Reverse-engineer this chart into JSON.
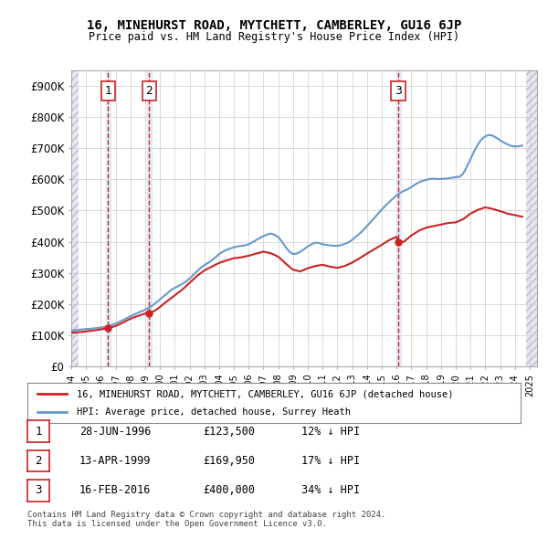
{
  "title": "16, MINEHURST ROAD, MYTCHETT, CAMBERLEY, GU16 6JP",
  "subtitle": "Price paid vs. HM Land Registry's House Price Index (HPI)",
  "xlabel": "",
  "ylabel": "",
  "ylim": [
    0,
    950000
  ],
  "xlim_start": 1994.0,
  "xlim_end": 2025.5,
  "yticks": [
    0,
    100000,
    200000,
    300000,
    400000,
    500000,
    600000,
    700000,
    800000,
    900000
  ],
  "ytick_labels": [
    "£0",
    "£100K",
    "£200K",
    "£300K",
    "£400K",
    "£500K",
    "£600K",
    "£700K",
    "£800K",
    "£900K"
  ],
  "sales": [
    {
      "date_num": 1996.49,
      "price": 123500,
      "label": "1"
    },
    {
      "date_num": 1999.28,
      "price": 169950,
      "label": "2"
    },
    {
      "date_num": 2016.12,
      "price": 400000,
      "label": "3"
    }
  ],
  "hpi_color": "#6699cc",
  "price_color": "#cc2222",
  "sale_marker_color": "#cc2222",
  "vline_color": "#cc2222",
  "background_hatch_color": "#e8e8f0",
  "grid_color": "#cccccc",
  "legend_entries": [
    "16, MINEHURST ROAD, MYTCHETT, CAMBERLEY, GU16 6JP (detached house)",
    "HPI: Average price, detached house, Surrey Heath"
  ],
  "table_rows": [
    [
      "1",
      "28-JUN-1996",
      "£123,500",
      "12% ↓ HPI"
    ],
    [
      "2",
      "13-APR-1999",
      "£169,950",
      "17% ↓ HPI"
    ],
    [
      "3",
      "16-FEB-2016",
      "£400,000",
      "34% ↓ HPI"
    ]
  ],
  "footer": "Contains HM Land Registry data © Crown copyright and database right 2024.\nThis data is licensed under the Open Government Licence v3.0.",
  "hpi_data_x": [
    1994.0,
    1994.25,
    1994.5,
    1994.75,
    1995.0,
    1995.25,
    1995.5,
    1995.75,
    1996.0,
    1996.25,
    1996.5,
    1996.75,
    1997.0,
    1997.25,
    1997.5,
    1997.75,
    1998.0,
    1998.25,
    1998.5,
    1998.75,
    1999.0,
    1999.25,
    1999.5,
    1999.75,
    2000.0,
    2000.25,
    2000.5,
    2000.75,
    2001.0,
    2001.25,
    2001.5,
    2001.75,
    2002.0,
    2002.25,
    2002.5,
    2002.75,
    2003.0,
    2003.25,
    2003.5,
    2003.75,
    2004.0,
    2004.25,
    2004.5,
    2004.75,
    2005.0,
    2005.25,
    2005.5,
    2005.75,
    2006.0,
    2006.25,
    2006.5,
    2006.75,
    2007.0,
    2007.25,
    2007.5,
    2007.75,
    2008.0,
    2008.25,
    2008.5,
    2008.75,
    2009.0,
    2009.25,
    2009.5,
    2009.75,
    2010.0,
    2010.25,
    2010.5,
    2010.75,
    2011.0,
    2011.25,
    2011.5,
    2011.75,
    2012.0,
    2012.25,
    2012.5,
    2012.75,
    2013.0,
    2013.25,
    2013.5,
    2013.75,
    2014.0,
    2014.25,
    2014.5,
    2014.75,
    2015.0,
    2015.25,
    2015.5,
    2015.75,
    2016.0,
    2016.25,
    2016.5,
    2016.75,
    2017.0,
    2017.25,
    2017.5,
    2017.75,
    2018.0,
    2018.25,
    2018.5,
    2018.75,
    2019.0,
    2019.25,
    2019.5,
    2019.75,
    2020.0,
    2020.25,
    2020.5,
    2020.75,
    2021.0,
    2021.25,
    2021.5,
    2021.75,
    2022.0,
    2022.25,
    2022.5,
    2022.75,
    2023.0,
    2023.25,
    2023.5,
    2023.75,
    2024.0,
    2024.25,
    2024.5
  ],
  "hpi_data_y": [
    115000,
    116000,
    117500,
    119000,
    120000,
    121000,
    122000,
    123500,
    125000,
    127000,
    130000,
    133000,
    138000,
    143000,
    149000,
    155000,
    161000,
    167000,
    172000,
    177000,
    182000,
    188000,
    196000,
    205000,
    215000,
    225000,
    235000,
    245000,
    252000,
    258000,
    265000,
    272000,
    282000,
    293000,
    305000,
    316000,
    325000,
    332000,
    340000,
    350000,
    360000,
    368000,
    374000,
    378000,
    382000,
    385000,
    387000,
    388000,
    392000,
    398000,
    405000,
    412000,
    418000,
    423000,
    426000,
    422000,
    415000,
    400000,
    383000,
    368000,
    360000,
    362000,
    368000,
    376000,
    385000,
    392000,
    397000,
    396000,
    392000,
    390000,
    388000,
    387000,
    387000,
    389000,
    393000,
    398000,
    406000,
    416000,
    426000,
    437000,
    450000,
    463000,
    476000,
    490000,
    503000,
    515000,
    527000,
    538000,
    548000,
    557000,
    563000,
    568000,
    575000,
    583000,
    590000,
    595000,
    598000,
    601000,
    602000,
    601000,
    601000,
    602000,
    603000,
    605000,
    607000,
    608000,
    618000,
    640000,
    665000,
    690000,
    712000,
    728000,
    738000,
    742000,
    740000,
    733000,
    725000,
    718000,
    712000,
    707000,
    705000,
    706000,
    708000
  ],
  "price_line_x": [
    1994.0,
    1994.25,
    1994.5,
    1994.75,
    1995.0,
    1995.25,
    1995.5,
    1995.75,
    1996.0,
    1996.25,
    1996.49,
    1996.75,
    1997.0,
    1997.25,
    1997.5,
    1997.75,
    1998.0,
    1998.25,
    1998.5,
    1998.75,
    1999.0,
    1999.28,
    1999.5,
    1999.75,
    2000.0,
    2000.5,
    2001.0,
    2001.5,
    2002.0,
    2002.5,
    2003.0,
    2003.5,
    2004.0,
    2004.5,
    2005.0,
    2005.5,
    2006.0,
    2006.5,
    2007.0,
    2007.5,
    2008.0,
    2008.5,
    2009.0,
    2009.5,
    2010.0,
    2010.5,
    2011.0,
    2011.5,
    2012.0,
    2012.5,
    2013.0,
    2013.5,
    2014.0,
    2014.5,
    2015.0,
    2015.5,
    2016.0,
    2016.12,
    2016.5,
    2017.0,
    2017.5,
    2018.0,
    2018.5,
    2019.0,
    2019.5,
    2020.0,
    2020.5,
    2021.0,
    2021.5,
    2022.0,
    2022.5,
    2023.0,
    2023.5,
    2024.0,
    2024.5
  ],
  "price_line_y": [
    108000,
    109000,
    110000,
    111000,
    112500,
    114000,
    115500,
    117000,
    119000,
    121000,
    123500,
    126000,
    130000,
    135000,
    141000,
    147000,
    153000,
    158000,
    162000,
    166000,
    170000,
    169950,
    175000,
    182000,
    191000,
    210000,
    228000,
    246000,
    268000,
    290000,
    308000,
    320000,
    332000,
    340000,
    347000,
    350000,
    355000,
    362000,
    368000,
    363000,
    352000,
    330000,
    310000,
    305000,
    315000,
    322000,
    326000,
    320000,
    316000,
    322000,
    333000,
    347000,
    362000,
    376000,
    390000,
    405000,
    416000,
    400000,
    400000,
    420000,
    435000,
    445000,
    450000,
    455000,
    460000,
    462000,
    472000,
    490000,
    502000,
    510000,
    505000,
    498000,
    490000,
    485000,
    480000
  ]
}
